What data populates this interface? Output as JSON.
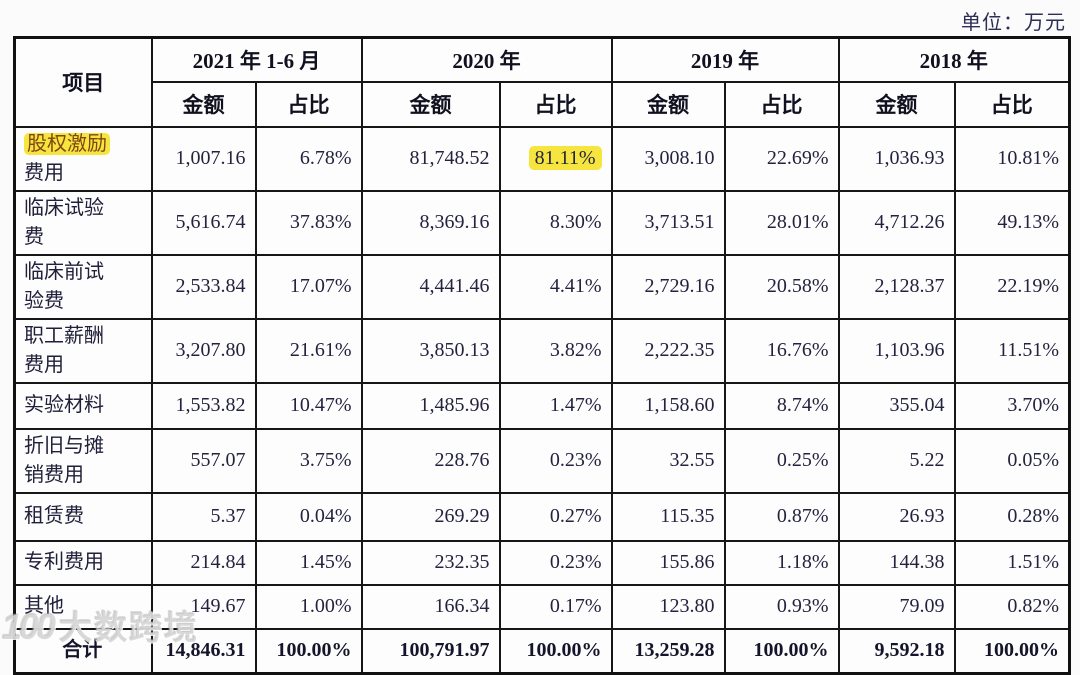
{
  "unit_label": "单位：万元",
  "watermark": {
    "logo": "100",
    "text": "大数跨境"
  },
  "colors": {
    "highlight": "#f6e53e",
    "text": "#23233f",
    "label_highlight_text": "#7f4712",
    "border": "#161616"
  },
  "table": {
    "item_header": "项目",
    "year_headers": [
      "2021 年 1-6 月",
      "2020 年",
      "2019 年",
      "2018 年"
    ],
    "sub_headers": [
      "金额",
      "占比"
    ],
    "rows": [
      {
        "label_lines": [
          "股权激励",
          "费用"
        ],
        "highlight_label": true,
        "highlight_values": [
          3
        ],
        "values": [
          "1,007.16",
          "6.78%",
          "81,748.52",
          "81.11%",
          "3,008.10",
          "22.69%",
          "1,036.93",
          "10.81%"
        ]
      },
      {
        "label_lines": [
          "临床试验",
          "费"
        ],
        "values": [
          "5,616.74",
          "37.83%",
          "8,369.16",
          "8.30%",
          "3,713.51",
          "28.01%",
          "4,712.26",
          "49.13%"
        ]
      },
      {
        "label_lines": [
          "临床前试",
          "验费"
        ],
        "values": [
          "2,533.84",
          "17.07%",
          "4,441.46",
          "4.41%",
          "2,729.16",
          "20.58%",
          "2,128.37",
          "22.19%"
        ]
      },
      {
        "label_lines": [
          "职工薪酬",
          "费用"
        ],
        "values": [
          "3,207.80",
          "21.61%",
          "3,850.13",
          "3.82%",
          "2,222.35",
          "16.76%",
          "1,103.96",
          "11.51%"
        ]
      },
      {
        "label_lines": [
          "实验材料"
        ],
        "values": [
          "1,553.82",
          "10.47%",
          "1,485.96",
          "1.47%",
          "1,158.60",
          "8.74%",
          "355.04",
          "3.70%"
        ]
      },
      {
        "label_lines": [
          "折旧与摊",
          "销费用"
        ],
        "values": [
          "557.07",
          "3.75%",
          "228.76",
          "0.23%",
          "32.55",
          "0.25%",
          "5.22",
          "0.05%"
        ]
      },
      {
        "label_lines": [
          "租赁费"
        ],
        "values": [
          "5.37",
          "0.04%",
          "269.29",
          "0.27%",
          "115.35",
          "0.87%",
          "26.93",
          "0.28%"
        ]
      },
      {
        "label_lines": [
          "专利费用"
        ],
        "values": [
          "214.84",
          "1.45%",
          "232.35",
          "0.23%",
          "155.86",
          "1.18%",
          "144.38",
          "1.51%"
        ]
      },
      {
        "label_lines": [
          "其他"
        ],
        "values": [
          "149.67",
          "1.00%",
          "166.34",
          "0.17%",
          "123.80",
          "0.93%",
          "79.09",
          "0.82%"
        ]
      },
      {
        "label_lines": [
          "合计"
        ],
        "is_total": true,
        "values": [
          "14,846.31",
          "100.00%",
          "100,791.97",
          "100.00%",
          "13,259.28",
          "100.00%",
          "9,592.18",
          "100.00%"
        ]
      }
    ]
  }
}
